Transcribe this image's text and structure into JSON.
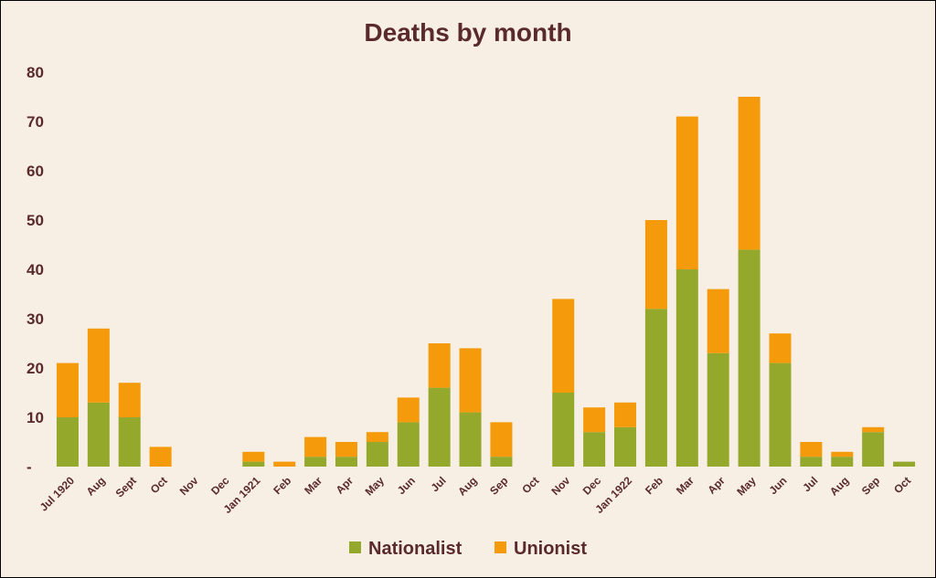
{
  "chart_data": {
    "type": "bar",
    "stacked": true,
    "title": "Deaths by month",
    "xlabel": "",
    "ylabel": "",
    "ylim": [
      0,
      80
    ],
    "yticks": [
      0,
      10,
      20,
      30,
      40,
      50,
      60,
      70,
      80
    ],
    "ytick_labels": [
      "-",
      "10",
      "20",
      "30",
      "40",
      "50",
      "60",
      "70",
      "80"
    ],
    "grid": false,
    "legend_position": "bottom",
    "categories": [
      "Jul 1920",
      "Aug",
      "Sept",
      "Oct",
      "Nov",
      "Dec",
      "Jan 1921",
      "Feb",
      "Mar",
      "Apr",
      "May",
      "Jun",
      "Jul",
      "Aug",
      "Sep",
      "Oct",
      "Nov",
      "Dec",
      "Jan 1922",
      "Feb",
      "Mar",
      "Apr",
      "May",
      "Jun",
      "Jul",
      "Aug",
      "Sep",
      "Oct"
    ],
    "series": [
      {
        "name": "Nationalist",
        "color": "#94a82c",
        "values": [
          10,
          13,
          10,
          0,
          0,
          0,
          1,
          0,
          2,
          2,
          5,
          9,
          16,
          11,
          2,
          0,
          15,
          7,
          8,
          32,
          40,
          23,
          44,
          21,
          2,
          2,
          7,
          1
        ]
      },
      {
        "name": "Unionist",
        "color": "#f59a0a",
        "values": [
          11,
          15,
          7,
          4,
          0,
          0,
          2,
          1,
          4,
          3,
          2,
          5,
          9,
          13,
          7,
          0,
          19,
          5,
          5,
          18,
          31,
          13,
          31,
          6,
          3,
          1,
          1,
          0
        ]
      }
    ]
  }
}
